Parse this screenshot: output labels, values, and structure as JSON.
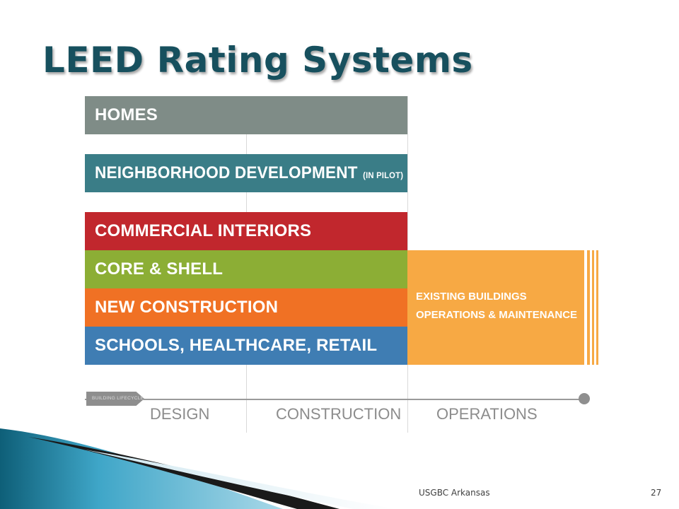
{
  "slide": {
    "title": "LEED Rating Systems",
    "footer": "USGBC Arkansas",
    "page_number": "27"
  },
  "diagram": {
    "bands": [
      {
        "label": "HOMES",
        "note": "",
        "color": "#7f8c87"
      },
      {
        "label": "NEIGHBORHOOD DEVELOPMENT",
        "note": "(IN PILOT)",
        "color": "#3a7d87"
      },
      {
        "label": "COMMERCIAL INTERIORS",
        "note": "",
        "color": "#c1272d"
      },
      {
        "label": "CORE & SHELL",
        "note": "",
        "color": "#8cae35"
      },
      {
        "label": "NEW CONSTRUCTION",
        "note": "",
        "color": "#f07124"
      },
      {
        "label": "SCHOOLS, HEALTHCARE, RETAIL",
        "note": "",
        "color": "#3f7db3"
      }
    ],
    "operations": {
      "line1": "EXISTING BUILDINGS",
      "line2": "OPERATIONS & MAINTENANCE",
      "color": "#f7a944"
    },
    "timeline": {
      "tag": "BUILDING LIFECYCLE",
      "phases": [
        "DESIGN",
        "CONSTRUCTION",
        "OPERATIONS"
      ]
    }
  }
}
